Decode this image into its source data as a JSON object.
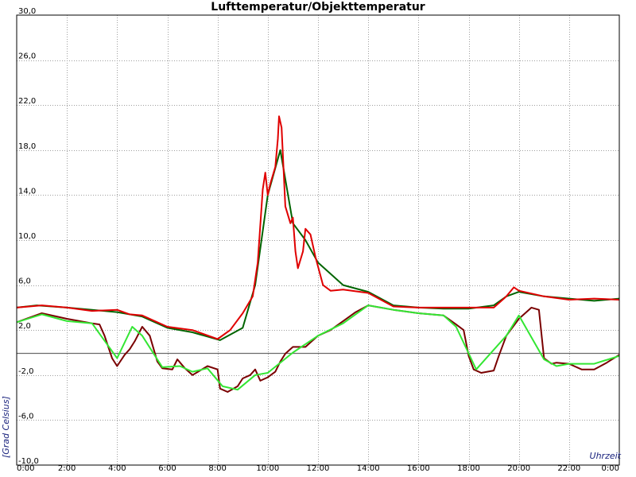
{
  "chart_data": {
    "type": "line",
    "title": "Lufttemperatur/Objekttemperatur",
    "xlabel": "Uhrzeit",
    "ylabel": "[Grad Celsius]",
    "xlim": [
      0,
      24
    ],
    "ylim": [
      -10,
      30
    ],
    "grid": true,
    "legend": "none",
    "x_ticks": [
      {
        "x": 0,
        "label": "0:00"
      },
      {
        "x": 2,
        "label": "2:00"
      },
      {
        "x": 4,
        "label": "4:00"
      },
      {
        "x": 6,
        "label": "6:00"
      },
      {
        "x": 8,
        "label": "8:00"
      },
      {
        "x": 10,
        "label": "10:00"
      },
      {
        "x": 12,
        "label": "12:00"
      },
      {
        "x": 14,
        "label": "14:00"
      },
      {
        "x": 16,
        "label": "16:00"
      },
      {
        "x": 18,
        "label": "18:00"
      },
      {
        "x": 20,
        "label": "20:00"
      },
      {
        "x": 22,
        "label": "22:00"
      },
      {
        "x": 24,
        "label": "0:00"
      }
    ],
    "y_ticks": [
      {
        "y": -10,
        "label": "-10,0"
      },
      {
        "y": -6,
        "label": "-6,0"
      },
      {
        "y": -2,
        "label": "-2,0"
      },
      {
        "y": 2,
        "label": "2,0"
      },
      {
        "y": 6,
        "label": "6,0"
      },
      {
        "y": 10,
        "label": "10,0"
      },
      {
        "y": 14,
        "label": "14,0"
      },
      {
        "y": 18,
        "label": "18,0"
      },
      {
        "y": 22,
        "label": "22,0"
      },
      {
        "y": 26,
        "label": "26,0"
      },
      {
        "y": 30,
        "label": "30,0"
      }
    ],
    "series": [
      {
        "color": "#006400",
        "points": [
          [
            0,
            4.0
          ],
          [
            0.8,
            4.2
          ],
          [
            2,
            4.0
          ],
          [
            3,
            3.8
          ],
          [
            4,
            3.6
          ],
          [
            5,
            3.2
          ],
          [
            6,
            2.2
          ],
          [
            7,
            1.8
          ],
          [
            8.1,
            1.1
          ],
          [
            9,
            2.2
          ],
          [
            9.5,
            6.0
          ],
          [
            10,
            14.0
          ],
          [
            10.5,
            18.0
          ],
          [
            11,
            11.5
          ],
          [
            11.5,
            10.0
          ],
          [
            12,
            8.0
          ],
          [
            13,
            6.0
          ],
          [
            14,
            5.4
          ],
          [
            15,
            4.2
          ],
          [
            16,
            4.0
          ],
          [
            17,
            3.9
          ],
          [
            18,
            3.9
          ],
          [
            19,
            4.2
          ],
          [
            19.5,
            5.0
          ],
          [
            20,
            5.4
          ],
          [
            21,
            5.0
          ],
          [
            22,
            4.8
          ],
          [
            23,
            4.6
          ],
          [
            24,
            4.8
          ]
        ]
      },
      {
        "color": "#e00000",
        "points": [
          [
            0,
            4.0
          ],
          [
            0.5,
            4.1
          ],
          [
            1,
            4.2
          ],
          [
            2,
            4.0
          ],
          [
            3,
            3.7
          ],
          [
            4,
            3.8
          ],
          [
            4.5,
            3.4
          ],
          [
            5,
            3.3
          ],
          [
            6,
            2.3
          ],
          [
            7,
            2.0
          ],
          [
            8,
            1.2
          ],
          [
            8.5,
            2.0
          ],
          [
            9,
            3.5
          ],
          [
            9.4,
            5.0
          ],
          [
            9.6,
            8.0
          ],
          [
            9.8,
            14.5
          ],
          [
            9.9,
            16.0
          ],
          [
            10.0,
            14.0
          ],
          [
            10.1,
            15.0
          ],
          [
            10.3,
            16.5
          ],
          [
            10.4,
            19.0
          ],
          [
            10.45,
            21.0
          ],
          [
            10.55,
            20.0
          ],
          [
            10.7,
            13.0
          ],
          [
            10.9,
            11.5
          ],
          [
            11.0,
            12.0
          ],
          [
            11.1,
            9.0
          ],
          [
            11.2,
            7.5
          ],
          [
            11.4,
            9.0
          ],
          [
            11.5,
            11.0
          ],
          [
            11.7,
            10.5
          ],
          [
            11.9,
            8.5
          ],
          [
            12.2,
            6.0
          ],
          [
            12.5,
            5.5
          ],
          [
            13,
            5.6
          ],
          [
            14,
            5.3
          ],
          [
            15,
            4.1
          ],
          [
            16,
            4.0
          ],
          [
            17,
            4.0
          ],
          [
            18,
            4.0
          ],
          [
            19,
            4.0
          ],
          [
            19.5,
            5.0
          ],
          [
            19.8,
            5.8
          ],
          [
            20,
            5.5
          ],
          [
            21,
            5.0
          ],
          [
            22,
            4.7
          ],
          [
            23,
            4.8
          ],
          [
            24,
            4.7
          ]
        ]
      },
      {
        "color": "#7a0000",
        "points": [
          [
            0,
            2.7
          ],
          [
            1,
            3.5
          ],
          [
            2,
            3.0
          ],
          [
            3,
            2.6
          ],
          [
            3.3,
            2.5
          ],
          [
            3.5,
            1.5
          ],
          [
            3.8,
            -0.5
          ],
          [
            4.0,
            -1.2
          ],
          [
            4.3,
            -0.2
          ],
          [
            4.5,
            0.3
          ],
          [
            4.7,
            1.0
          ],
          [
            5.0,
            2.3
          ],
          [
            5.3,
            1.5
          ],
          [
            5.6,
            -0.8
          ],
          [
            5.8,
            -1.4
          ],
          [
            6.2,
            -1.5
          ],
          [
            6.4,
            -0.6
          ],
          [
            6.7,
            -1.4
          ],
          [
            7.0,
            -2.0
          ],
          [
            7.3,
            -1.6
          ],
          [
            7.6,
            -1.2
          ],
          [
            8.0,
            -1.5
          ],
          [
            8.1,
            -3.2
          ],
          [
            8.4,
            -3.5
          ],
          [
            8.8,
            -3.0
          ],
          [
            9.0,
            -2.3
          ],
          [
            9.3,
            -2.0
          ],
          [
            9.5,
            -1.5
          ],
          [
            9.7,
            -2.5
          ],
          [
            10.0,
            -2.2
          ],
          [
            10.3,
            -1.7
          ],
          [
            10.5,
            -0.8
          ],
          [
            10.7,
            -0.1
          ],
          [
            11,
            0.5
          ],
          [
            11.5,
            0.5
          ],
          [
            12,
            1.5
          ],
          [
            12.5,
            2.0
          ],
          [
            13,
            2.8
          ],
          [
            13.5,
            3.6
          ],
          [
            14,
            4.2
          ],
          [
            15,
            3.8
          ],
          [
            16,
            3.5
          ],
          [
            17,
            3.3
          ],
          [
            17.5,
            2.5
          ],
          [
            17.8,
            2.0
          ],
          [
            18.0,
            -0.3
          ],
          [
            18.2,
            -1.5
          ],
          [
            18.5,
            -1.8
          ],
          [
            19.0,
            -1.6
          ],
          [
            19.2,
            -0.3
          ],
          [
            19.5,
            1.5
          ],
          [
            20,
            3.0
          ],
          [
            20.5,
            4.0
          ],
          [
            20.8,
            3.8
          ],
          [
            21.0,
            -0.5
          ],
          [
            21.3,
            -1.0
          ],
          [
            21.5,
            -0.9
          ],
          [
            22,
            -1.0
          ],
          [
            22.5,
            -1.5
          ],
          [
            23,
            -1.5
          ],
          [
            23.5,
            -0.9
          ],
          [
            24,
            -0.2
          ]
        ]
      },
      {
        "color": "#33e633",
        "points": [
          [
            0,
            2.7
          ],
          [
            1,
            3.4
          ],
          [
            2,
            2.8
          ],
          [
            3,
            2.6
          ],
          [
            4,
            -0.5
          ],
          [
            4.6,
            2.3
          ],
          [
            5,
            1.5
          ],
          [
            5.8,
            -1.3
          ],
          [
            6.5,
            -1.2
          ],
          [
            7,
            -1.7
          ],
          [
            7.6,
            -1.4
          ],
          [
            8.2,
            -3.0
          ],
          [
            8.8,
            -3.3
          ],
          [
            9.5,
            -2.0
          ],
          [
            10,
            -1.8
          ],
          [
            11,
            0.0
          ],
          [
            12,
            1.5
          ],
          [
            13,
            2.6
          ],
          [
            14,
            4.2
          ],
          [
            15,
            3.8
          ],
          [
            16,
            3.5
          ],
          [
            17,
            3.3
          ],
          [
            17.5,
            2.3
          ],
          [
            18.3,
            -1.5
          ],
          [
            18.7,
            -0.5
          ],
          [
            19.5,
            1.5
          ],
          [
            20,
            3.3
          ],
          [
            21,
            -0.6
          ],
          [
            21.5,
            -1.2
          ],
          [
            22,
            -1.0
          ],
          [
            23,
            -1.0
          ],
          [
            24,
            -0.3
          ]
        ]
      }
    ]
  }
}
